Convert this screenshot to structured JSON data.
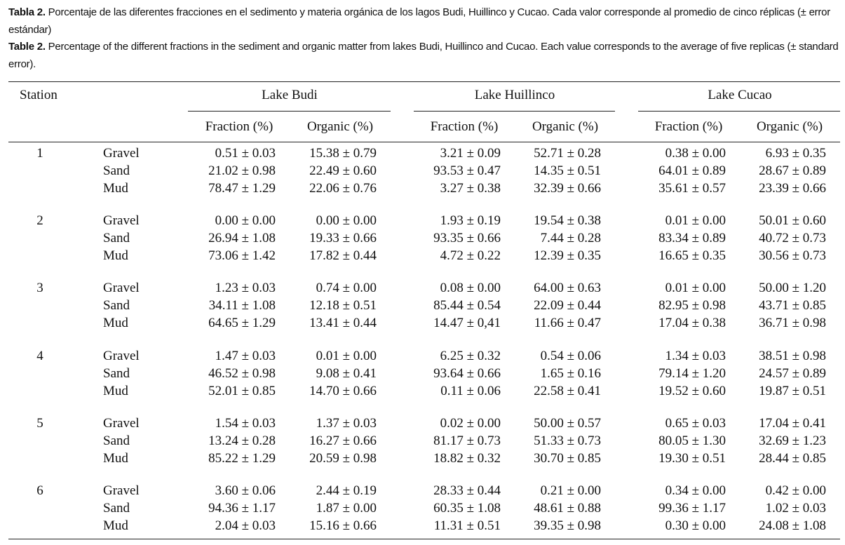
{
  "caption_es": {
    "label": "Tabla 2.",
    "text": "Porcentaje de las diferentes fracciones en el sedimento y materia orgánica de los lagos Budi, Huillinco y Cucao. Cada valor corresponde al promedio de cinco réplicas (± error estándar)"
  },
  "caption_en": {
    "label": "Table 2.",
    "text": "Percentage of the different fractions in the sediment and organic matter from lakes Budi, Huillinco and Cucao. Each value corresponds to the average of five replicas (± standard error)."
  },
  "table": {
    "headers": {
      "station": "Station",
      "lakes": [
        "Lake Budi",
        "Lake Huillinco",
        "Lake Cucao"
      ],
      "columns": [
        "Fraction (%)",
        "Organic (%)",
        "Fraction (%)",
        "Organic (%)",
        "Fraction (%)",
        "Organic (%)"
      ]
    },
    "rows": [
      {
        "station": "1",
        "fractions": [
          {
            "name": "Gravel",
            "cells": [
              "0.51 ± 0.03",
              "15.38 ± 0.79",
              "3.21 ± 0.09",
              "52.71 ± 0.28",
              "0.38 ± 0.00",
              "6.93 ± 0.35"
            ]
          },
          {
            "name": "Sand",
            "cells": [
              "21.02 ± 0.98",
              "22.49 ± 0.60",
              "93.53 ± 0.47",
              "14.35 ± 0.51",
              "64.01 ± 0.89",
              "28.67 ± 0.89"
            ]
          },
          {
            "name": "Mud",
            "cells": [
              "78.47 ± 1.29",
              "22.06 ± 0.76",
              "3.27 ± 0.38",
              "32.39 ± 0.66",
              "35.61 ± 0.57",
              "23.39 ± 0.66"
            ]
          }
        ]
      },
      {
        "station": "2",
        "fractions": [
          {
            "name": "Gravel",
            "cells": [
              "0.00 ± 0.00",
              "0.00 ± 0.00",
              "1.93 ± 0.19",
              "19.54 ± 0.38",
              "0.01 ± 0.00",
              "50.01 ± 0.60"
            ]
          },
          {
            "name": "Sand",
            "cells": [
              "26.94 ± 1.08",
              "19.33 ± 0.66",
              "93.35 ± 0.66",
              "7.44 ± 0.28",
              "83.34 ± 0.89",
              "40.72 ± 0.73"
            ]
          },
          {
            "name": "Mud",
            "cells": [
              "73.06 ± 1.42",
              "17.82 ± 0.44",
              "4.72 ± 0.22",
              "12.39 ± 0.35",
              "16.65 ± 0.35",
              "30.56 ± 0.73"
            ]
          }
        ]
      },
      {
        "station": "3",
        "fractions": [
          {
            "name": "Gravel",
            "cells": [
              "1.23 ± 0.03",
              "0.74 ± 0.00",
              "0.08 ± 0.00",
              "64.00 ± 0.63",
              "0.01 ± 0.00",
              "50.00 ± 1.20"
            ]
          },
          {
            "name": "Sand",
            "cells": [
              "34.11 ± 1.08",
              "12.18 ± 0.51",
              "85.44 ± 0.54",
              "22.09 ± 0.44",
              "82.95 ± 0.98",
              "43.71 ± 0.85"
            ]
          },
          {
            "name": "Mud",
            "cells": [
              "64.65 ± 1.29",
              "13.41 ± 0.44",
              "14.47 ± 0,41",
              "11.66 ± 0.47",
              "17.04 ± 0.38",
              "36.71 ± 0.98"
            ]
          }
        ]
      },
      {
        "station": "4",
        "fractions": [
          {
            "name": "Gravel",
            "cells": [
              "1.47 ± 0.03",
              "0.01 ± 0.00",
              "6.25 ± 0.32",
              "0.54 ± 0.06",
              "1.34 ± 0.03",
              "38.51 ± 0.98"
            ]
          },
          {
            "name": "Sand",
            "cells": [
              "46.52 ± 0.98",
              "9.08 ± 0.41",
              "93.64 ± 0.66",
              "1.65 ± 0.16",
              "79.14 ± 1.20",
              "24.57 ± 0.89"
            ]
          },
          {
            "name": "Mud",
            "cells": [
              "52.01 ± 0.85",
              "14.70 ± 0.66",
              "0.11 ± 0.06",
              "22.58 ± 0.41",
              "19.52 ± 0.60",
              "19.87 ± 0.51"
            ]
          }
        ]
      },
      {
        "station": "5",
        "fractions": [
          {
            "name": "Gravel",
            "cells": [
              "1.54 ± 0.03",
              "1.37 ± 0.03",
              "0.02 ± 0.00",
              "50.00 ± 0.57",
              "0.65 ± 0.03",
              "17.04 ± 0.41"
            ]
          },
          {
            "name": "Sand",
            "cells": [
              "13.24 ± 0.28",
              "16.27 ± 0.66",
              "81.17 ± 0.73",
              "51.33 ± 0.73",
              "80.05 ± 1.30",
              "32.69 ± 1.23"
            ]
          },
          {
            "name": "Mud",
            "cells": [
              "85.22 ± 1.29",
              "20.59 ± 0.98",
              "18.82 ± 0.32",
              "30.70 ± 0.85",
              "19.30 ± 0.51",
              "28.44 ± 0.85"
            ]
          }
        ]
      },
      {
        "station": "6",
        "fractions": [
          {
            "name": "Gravel",
            "cells": [
              "3.60 ± 0.06",
              "2.44 ± 0.19",
              "28.33 ± 0.44",
              "0.21 ± 0.00",
              "0.34 ± 0.00",
              "0.42 ± 0.00"
            ]
          },
          {
            "name": "Sand",
            "cells": [
              "94.36 ± 1.17",
              "1.87 ± 0.00",
              "60.35 ± 1.08",
              "48.61 ± 0.88",
              "99.36 ± 1.17",
              "1.02 ± 0.03"
            ]
          },
          {
            "name": "Mud",
            "cells": [
              "2.04 ± 0.03",
              "15.16 ± 0.66",
              "11.31 ± 0.51",
              "39.35 ± 0.98",
              "0.30 ± 0.00",
              "24.08 ± 1.08"
            ]
          }
        ]
      }
    ]
  }
}
